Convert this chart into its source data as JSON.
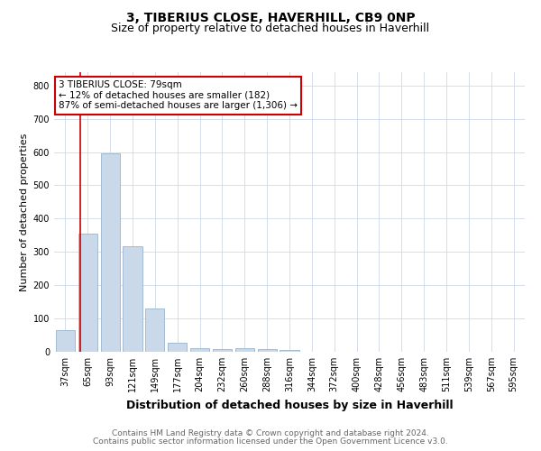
{
  "title_line1": "3, TIBERIUS CLOSE, HAVERHILL, CB9 0NP",
  "title_line2": "Size of property relative to detached houses in Haverhill",
  "xlabel": "Distribution of detached houses by size in Haverhill",
  "ylabel": "Number of detached properties",
  "categories": [
    "37sqm",
    "65sqm",
    "93sqm",
    "121sqm",
    "149sqm",
    "177sqm",
    "204sqm",
    "232sqm",
    "260sqm",
    "288sqm",
    "316sqm",
    "344sqm",
    "372sqm",
    "400sqm",
    "428sqm",
    "456sqm",
    "483sqm",
    "511sqm",
    "539sqm",
    "567sqm",
    "595sqm"
  ],
  "values": [
    65,
    355,
    595,
    318,
    130,
    28,
    10,
    8,
    10,
    8,
    5,
    0,
    0,
    0,
    0,
    0,
    0,
    0,
    0,
    0,
    0
  ],
  "bar_color": "#c9d9ea",
  "bar_edge_color": "#9ab5cc",
  "vline_bar_index": 1,
  "ylim": [
    0,
    840
  ],
  "yticks": [
    0,
    100,
    200,
    300,
    400,
    500,
    600,
    700,
    800
  ],
  "annotation_text": "3 TIBERIUS CLOSE: 79sqm\n← 12% of detached houses are smaller (182)\n87% of semi-detached houses are larger (1,306) →",
  "annotation_box_color": "#ffffff",
  "annotation_box_edge": "#cc0000",
  "vline_color": "#cc0000",
  "footer_line1": "Contains HM Land Registry data © Crown copyright and database right 2024.",
  "footer_line2": "Contains public sector information licensed under the Open Government Licence v3.0.",
  "background_color": "#ffffff",
  "grid_color": "#ccd9e8",
  "title_fontsize": 10,
  "subtitle_fontsize": 9,
  "ylabel_fontsize": 8,
  "xlabel_fontsize": 9,
  "tick_fontsize": 7,
  "annot_fontsize": 7.5,
  "footer_fontsize": 6.5
}
